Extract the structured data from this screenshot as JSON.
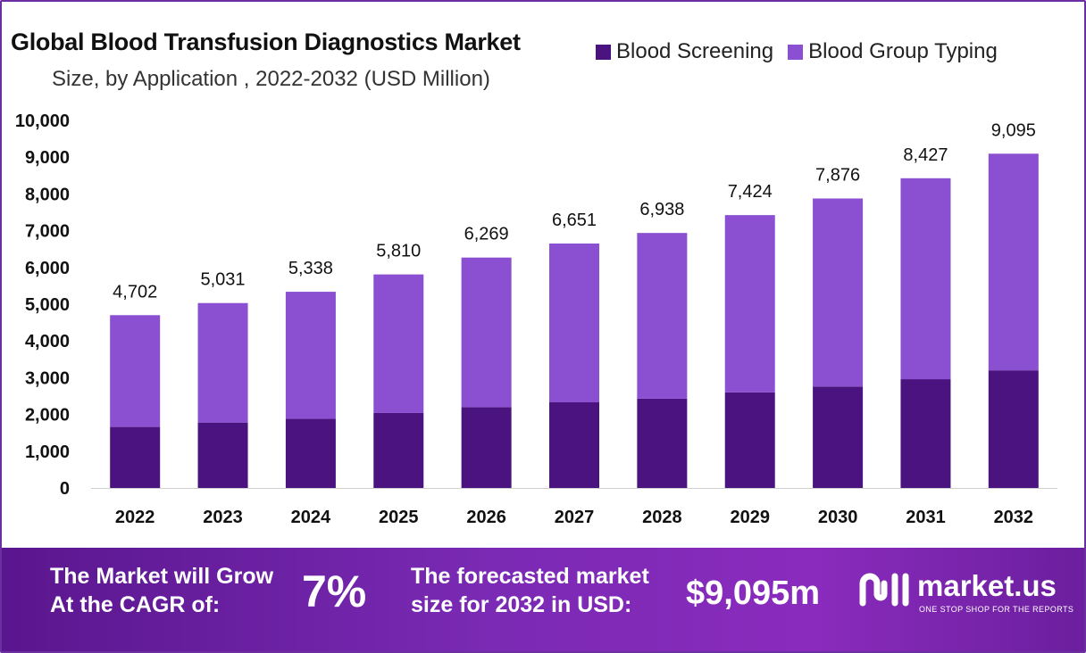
{
  "chart_data": {
    "type": "bar",
    "stacked": true,
    "title": "Global Blood Transfusion Diagnostics Market",
    "subtitle": "Size, by Application , 2022-2032 (USD Million)",
    "categories": [
      "2022",
      "2023",
      "2024",
      "2025",
      "2026",
      "2027",
      "2028",
      "2029",
      "2030",
      "2031",
      "2032"
    ],
    "series": [
      {
        "name": "Blood Screening",
        "color": "#4b1380",
        "values": [
          1660,
          1780,
          1880,
          2040,
          2200,
          2330,
          2430,
          2600,
          2760,
          2960,
          3200
        ]
      },
      {
        "name": "Blood Group Typing",
        "color": "#8b4fd1",
        "values": [
          3042,
          3251,
          3458,
          3770,
          4069,
          4321,
          4508,
          4824,
          5116,
          5467,
          5895
        ]
      }
    ],
    "totals": [
      4702,
      5031,
      5338,
      5810,
      6269,
      6651,
      6938,
      7424,
      7876,
      8427,
      9095
    ],
    "total_labels": [
      "4,702",
      "5,031",
      "5,338",
      "5,810",
      "6,269",
      "6,651",
      "6,938",
      "7,424",
      "7,876",
      "8,427",
      "9,095"
    ],
    "yticks": [
      "0",
      "1,000",
      "2,000",
      "3,000",
      "4,000",
      "5,000",
      "6,000",
      "7,000",
      "8,000",
      "9,000",
      "10,000"
    ],
    "ylim": [
      0,
      10000
    ],
    "legend_position": "top-right",
    "grid": false
  },
  "banner": {
    "cagr_text": "The Market will Grow\nAt the CAGR of:",
    "cagr_value": "7%",
    "forecast_text": "The forecasted market\nsize for 2032 in USD:",
    "forecast_value": "$9,095m",
    "logo_name": "market.us",
    "logo_tagline": "ONE STOP SHOP FOR THE REPORTS"
  }
}
